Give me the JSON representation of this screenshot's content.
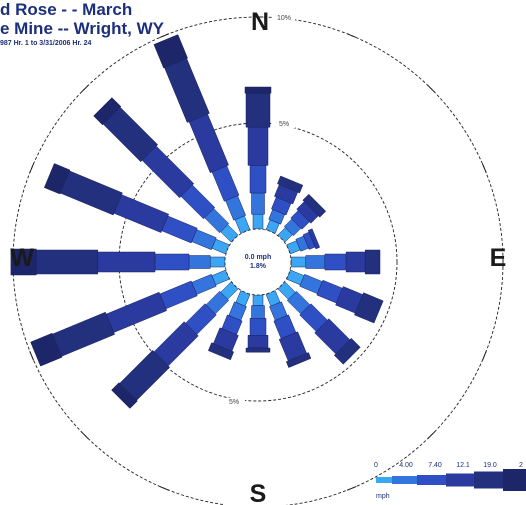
{
  "title": {
    "line1": "d Rose - - March",
    "line2": "e Mine -- Wright, WY",
    "line3": "987 Hr. 1 to 3/31/2006 Hr. 24"
  },
  "compass": {
    "n": "N",
    "e": "E",
    "s": "S",
    "w": "W"
  },
  "calm": {
    "speed": "0.0 mph",
    "percent": "1.8%"
  },
  "colors": {
    "bins": [
      "#3aa6f4",
      "#3375dc",
      "#2f50c4",
      "#2a3a9e",
      "#22307e",
      "#1c2668"
    ],
    "ring": "#222222"
  },
  "legend": {
    "ticks": [
      "0",
      "4.00",
      "7.40",
      "12.1",
      "19.0",
      "2"
    ],
    "unit": "mph"
  },
  "chart_data": {
    "type": "wind-rose",
    "ring_labels": [
      "5%",
      "10%"
    ],
    "rings_percent": [
      5,
      10
    ],
    "max_percent": 12,
    "speed_bins_mph": [
      "0-4.00",
      "4.00-7.40",
      "7.40-12.1",
      "12.1-19.0",
      "19.0-2?",
      ">2?"
    ],
    "directions": [
      {
        "dir": "N",
        "segments": [
          0.7,
          1.0,
          1.3,
          1.8,
          1.6,
          0.3
        ]
      },
      {
        "dir": "NNE",
        "segments": [
          0.5,
          0.5,
          0.6,
          0.6,
          0.4,
          0.0
        ]
      },
      {
        "dir": "NE",
        "segments": [
          0.5,
          0.5,
          0.5,
          0.5,
          0.4,
          0.0
        ]
      },
      {
        "dir": "ENE",
        "segments": [
          0.5,
          0.4,
          0.3,
          0.2,
          0.0,
          0.0
        ]
      },
      {
        "dir": "E",
        "segments": [
          0.7,
          0.9,
          1.0,
          0.9,
          0.7,
          0.0
        ]
      },
      {
        "dir": "ESE",
        "segments": [
          0.7,
          0.9,
          1.0,
          1.0,
          1.0,
          0.0
        ]
      },
      {
        "dir": "SE",
        "segments": [
          0.7,
          0.9,
          1.1,
          1.4,
          0.6,
          0.0
        ]
      },
      {
        "dir": "SSE",
        "segments": [
          0.6,
          0.7,
          0.9,
          1.1,
          0.3,
          0.0
        ]
      },
      {
        "dir": "S",
        "segments": [
          0.5,
          0.6,
          0.8,
          0.6,
          0.2,
          0.0
        ]
      },
      {
        "dir": "SSW",
        "segments": [
          0.6,
          0.7,
          0.7,
          0.8,
          0.4,
          0.0
        ]
      },
      {
        "dir": "SW",
        "segments": [
          0.7,
          0.9,
          1.3,
          2.0,
          2.2,
          0.5
        ]
      },
      {
        "dir": "WSW",
        "segments": [
          0.7,
          1.0,
          1.6,
          2.7,
          2.7,
          1.1
        ]
      },
      {
        "dir": "W",
        "segments": [
          0.7,
          1.0,
          1.6,
          2.7,
          2.9,
          1.2
        ]
      },
      {
        "dir": "WNW",
        "segments": [
          0.7,
          1.0,
          1.5,
          2.4,
          2.7,
          0.8
        ]
      },
      {
        "dir": "NW",
        "segments": [
          0.7,
          1.0,
          1.5,
          2.5,
          2.5,
          0.6
        ]
      },
      {
        "dir": "NNW",
        "segments": [
          0.7,
          1.0,
          1.5,
          2.6,
          2.8,
          1.2
        ]
      }
    ]
  }
}
